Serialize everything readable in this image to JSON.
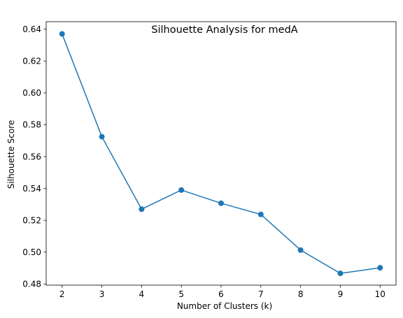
{
  "chart_data": {
    "type": "line",
    "title": "Silhouette Analysis for medA",
    "xlabel": "Number of Clusters (k)",
    "ylabel": "Silhouette Score",
    "x": [
      2,
      3,
      4,
      5,
      6,
      7,
      8,
      9,
      10
    ],
    "series": [
      {
        "values": [
          0.637,
          0.5725,
          0.527,
          0.539,
          0.5307,
          0.5237,
          0.5013,
          0.4867,
          0.4902
        ],
        "color": "#1f77b4",
        "marker": "circle"
      }
    ],
    "xlim": [
      1.6,
      10.4
    ],
    "ylim": [
      0.4793,
      0.6447
    ],
    "xticks": [
      2,
      3,
      4,
      5,
      6,
      7,
      8,
      9,
      10
    ],
    "yticks": [
      0.48,
      0.5,
      0.52,
      0.54,
      0.56,
      0.58,
      0.6,
      0.62,
      0.64
    ],
    "ytick_labels": [
      "0.48",
      "0.50",
      "0.52",
      "0.54",
      "0.56",
      "0.58",
      "0.60",
      "0.62",
      "0.64"
    ],
    "grid": false,
    "legend": "none"
  }
}
